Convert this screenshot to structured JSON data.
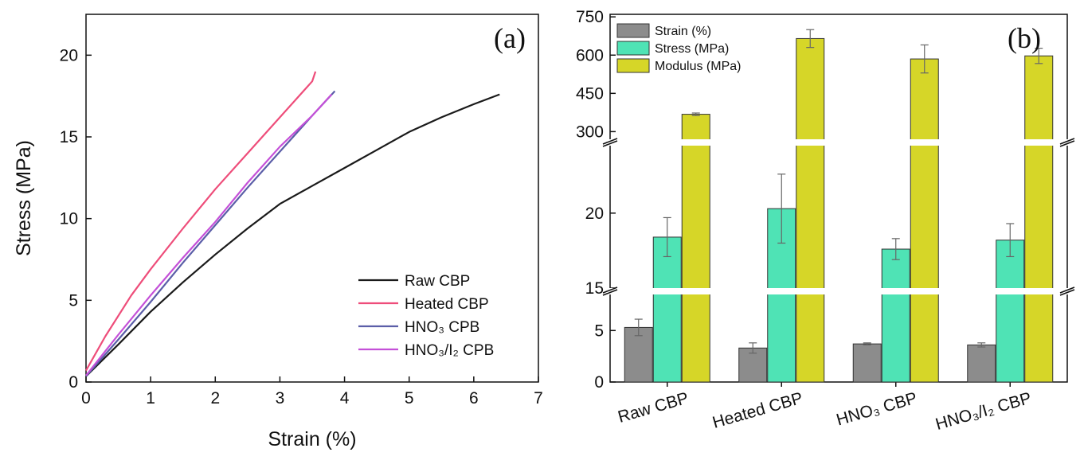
{
  "chart_data": [
    {
      "type": "line",
      "panel_label": "(a)",
      "xlabel": "Strain (%)",
      "ylabel": "Stress (MPa)",
      "xlim": [
        0,
        7
      ],
      "ylim": [
        0,
        22.5
      ],
      "xticks": [
        0,
        1,
        2,
        3,
        4,
        5,
        6,
        7
      ],
      "yticks": [
        0,
        5,
        10,
        15,
        20
      ],
      "legend_position": "bottom-right",
      "series": [
        {
          "name": "Raw CBP",
          "color": "#1a1a1a",
          "x": [
            0.0,
            0.5,
            1.0,
            1.5,
            2.0,
            2.5,
            3.0,
            3.5,
            4.0,
            4.5,
            5.0,
            5.5,
            6.0,
            6.4
          ],
          "y": [
            0.35,
            2.3,
            4.3,
            6.1,
            7.8,
            9.4,
            10.9,
            12.0,
            13.1,
            14.2,
            15.3,
            16.2,
            17.0,
            17.6
          ]
        },
        {
          "name": "Heated CBP",
          "color": "#ee4d7a",
          "x": [
            0.0,
            0.3,
            0.7,
            1.0,
            1.5,
            2.0,
            2.5,
            3.0,
            3.5,
            3.55
          ],
          "y": [
            0.7,
            2.8,
            5.3,
            6.9,
            9.4,
            11.8,
            14.0,
            16.2,
            18.4,
            19.0
          ]
        },
        {
          "name": "HNO₃ CPB",
          "color": "#5b5ea8",
          "x": [
            0.0,
            0.5,
            1.0,
            1.5,
            2.0,
            2.5,
            3.0,
            3.5,
            3.85
          ],
          "y": [
            0.35,
            2.6,
            4.9,
            7.3,
            9.6,
            11.9,
            14.1,
            16.3,
            17.8
          ]
        },
        {
          "name": "HNO₃/I₂ CPB",
          "color": "#c450d8",
          "x": [
            0.0,
            0.5,
            1.0,
            1.5,
            2.0,
            2.5,
            3.0,
            3.5,
            3.8
          ],
          "y": [
            0.4,
            2.9,
            5.3,
            7.6,
            9.8,
            12.2,
            14.4,
            16.3,
            17.6
          ]
        }
      ]
    },
    {
      "type": "bar",
      "panel_label": "(b)",
      "categories": [
        "Raw CBP",
        "Heated CBP",
        "HNO₃ CBP",
        "HNO₃/I₂ CBP"
      ],
      "broken_y_axis": true,
      "y_segments": [
        {
          "range": [
            0,
            8.5
          ],
          "ticks": [
            0,
            5
          ]
        },
        {
          "range": [
            15,
            24.5
          ],
          "ticks": [
            15,
            20
          ]
        },
        {
          "range": [
            270,
            760
          ],
          "ticks": [
            300,
            450,
            600,
            750
          ]
        }
      ],
      "legend_position": "top-left",
      "series": [
        {
          "name": "Strain (%)",
          "color": "#8c8c8c",
          "values": [
            5.3,
            3.3,
            3.7,
            3.6
          ],
          "errors": [
            0.8,
            0.5,
            0.1,
            0.2
          ]
        },
        {
          "name": "Stress (MPa)",
          "color": "#4fe3b5",
          "values": [
            18.4,
            20.3,
            17.6,
            18.2
          ],
          "errors": [
            1.3,
            2.3,
            0.7,
            1.1
          ]
        },
        {
          "name": "Modulus (MPa)",
          "color": "#d6d628",
          "values": [
            368,
            665,
            585,
            597
          ],
          "errors": [
            5,
            35,
            55,
            30
          ]
        }
      ]
    }
  ]
}
